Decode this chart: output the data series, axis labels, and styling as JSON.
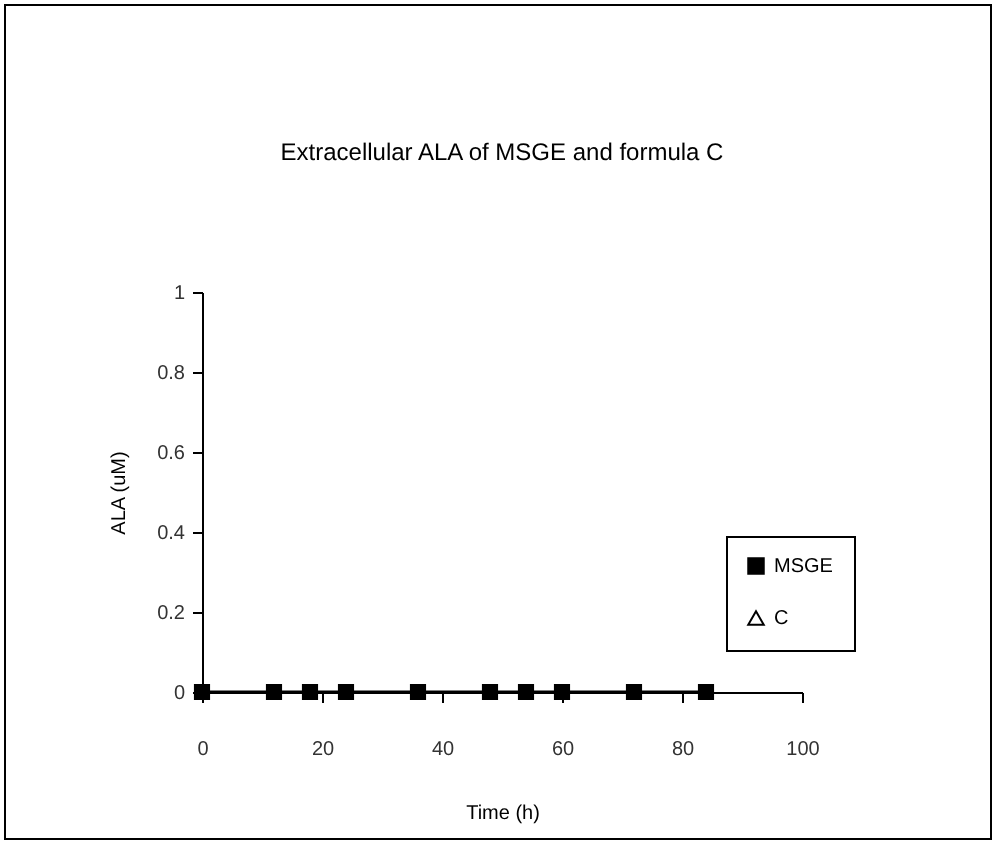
{
  "chart_data": {
    "type": "line",
    "title": "Extracellular ALA of MSGE and formula C",
    "xlabel": "Time (h)",
    "ylabel": "ALA (uM)",
    "x": [
      0,
      12,
      18,
      24,
      36,
      48,
      54,
      60,
      72,
      84
    ],
    "series": [
      {
        "name": "MSGE",
        "color": "#000000",
        "marker": "square",
        "values": [
          0,
          0,
          0,
          0,
          0,
          0,
          0,
          0,
          0,
          0
        ]
      },
      {
        "name": "C",
        "color": "#000000",
        "marker": "triangle",
        "values": [
          null,
          null,
          null,
          null,
          null,
          null,
          null,
          null,
          null,
          null
        ]
      }
    ],
    "xlim": [
      0,
      100
    ],
    "xticks": [
      0,
      20,
      40,
      60,
      80,
      100
    ],
    "ylim": [
      0,
      1
    ],
    "yticks": [
      0,
      0.2,
      0.4,
      0.6,
      0.8,
      1
    ],
    "grid": false,
    "legend": "right"
  }
}
